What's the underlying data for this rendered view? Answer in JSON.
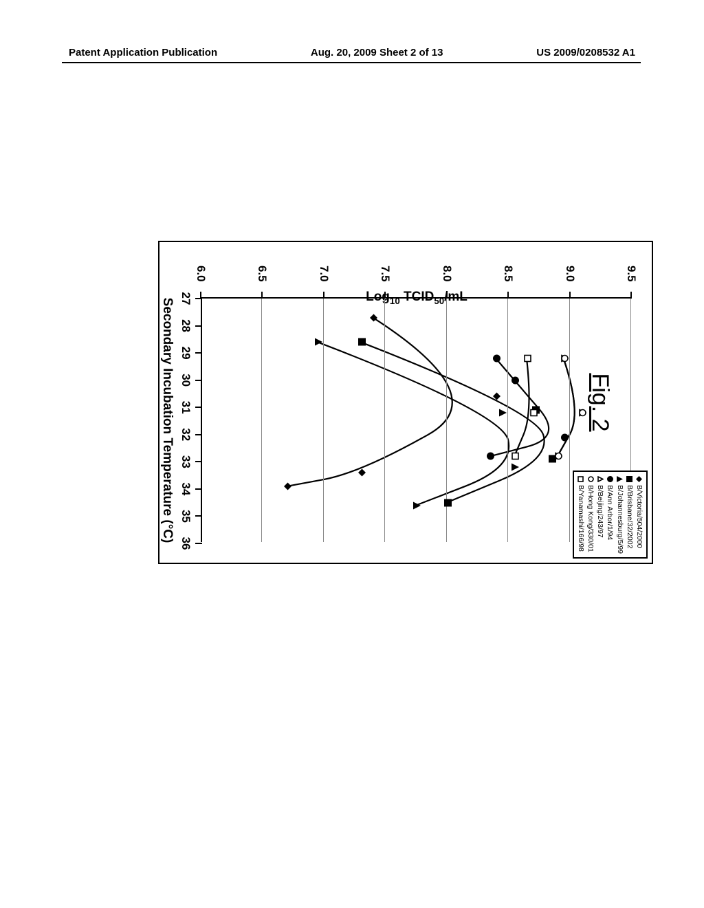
{
  "header": {
    "left": "Patent Application Publication",
    "center": "Aug. 20, 2009  Sheet 2 of 13",
    "right": "US 2009/0208532 A1"
  },
  "figure_caption": "Fig. 2",
  "chart": {
    "type": "line",
    "x_axis": {
      "title": "Secondary Incubation Temperature (°C)",
      "min": 27,
      "max": 36,
      "ticks": [
        27,
        28,
        29,
        30,
        31,
        32,
        33,
        34,
        35,
        36
      ]
    },
    "y_axis": {
      "title_html": "Log<sub>10</sub> TCID<sub>50</sub>/mL",
      "min": 6.0,
      "max": 9.5,
      "ticks": [
        6.0,
        6.5,
        7.0,
        7.5,
        8.0,
        8.5,
        9.0,
        9.5
      ],
      "gridlines": true
    },
    "colors": {
      "line": "#000000",
      "grid": "#888888",
      "border": "#000000",
      "background": "#ffffff"
    },
    "line_width": 2.2,
    "series": [
      {
        "name": "B/Victoria/504/2000",
        "marker": "diamond-filled",
        "points": [
          [
            27.7,
            7.4
          ],
          [
            30.6,
            8.4
          ],
          [
            33.4,
            7.3
          ],
          [
            33.9,
            6.7
          ]
        ]
      },
      {
        "name": "B/Brisbane/32/2002",
        "marker": "square-filled",
        "points": [
          [
            28.6,
            7.3
          ],
          [
            31.1,
            8.72
          ],
          [
            32.9,
            8.85
          ],
          [
            34.5,
            8.0
          ]
        ]
      },
      {
        "name": "B/Johannesburg/5/99",
        "marker": "triangle-filled",
        "points": [
          [
            28.6,
            6.95
          ],
          [
            31.2,
            8.45
          ],
          [
            33.2,
            8.55
          ],
          [
            34.6,
            7.75
          ]
        ]
      },
      {
        "name": "B/Ann Arbor/1/94",
        "marker": "circle-filled",
        "points": [
          [
            29.2,
            8.4
          ],
          [
            30.0,
            8.55
          ],
          [
            32.1,
            8.95
          ],
          [
            32.8,
            8.35
          ]
        ]
      },
      {
        "name": "B/Beijing/243/97",
        "marker": "triangle-open",
        "points": [
          [
            29.2,
            8.95
          ],
          [
            31.2,
            9.1
          ],
          [
            32.8,
            8.9
          ]
        ]
      },
      {
        "name": "B/Hong Kong/330/01",
        "marker": "circle-open",
        "points": [
          [
            29.2,
            8.95
          ],
          [
            31.2,
            9.1
          ],
          [
            32.8,
            8.9
          ]
        ]
      },
      {
        "name": "B/Yanamashi/166/98",
        "marker": "square-open",
        "points": [
          [
            29.2,
            8.65
          ],
          [
            31.2,
            8.7
          ],
          [
            32.8,
            8.55
          ]
        ]
      }
    ]
  }
}
